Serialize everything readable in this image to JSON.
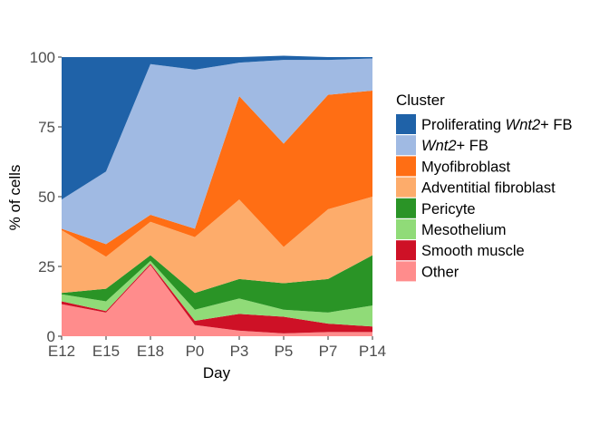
{
  "chart_data": {
    "type": "area",
    "stacked": true,
    "xlabel": "Day",
    "ylabel": "% of cells",
    "ylim": [
      0,
      100
    ],
    "yticks": [
      {
        "value": 0,
        "label": "0"
      },
      {
        "value": 25,
        "label": "25"
      },
      {
        "value": 50,
        "label": "50"
      },
      {
        "value": 75,
        "label": "75"
      },
      {
        "value": 100,
        "label": "100"
      }
    ],
    "categories": [
      "E12",
      "E15",
      "E18",
      "P0",
      "P3",
      "P5",
      "P7",
      "P14"
    ],
    "legend": {
      "title": "Cluster",
      "position": "right"
    },
    "grid": false,
    "series": [
      {
        "name": "Other",
        "label_parts": [
          {
            "text": "Other",
            "italic": false
          }
        ],
        "color": "#FF8C8C",
        "values": [
          11.5,
          8.5,
          25.5,
          4,
          2,
          1,
          1.5,
          1.5
        ]
      },
      {
        "name": "Smooth muscle",
        "label_parts": [
          {
            "text": "Smooth muscle",
            "italic": false
          }
        ],
        "color": "#CE1126",
        "values": [
          1,
          0.5,
          0.5,
          1.5,
          6,
          6,
          3,
          2
        ]
      },
      {
        "name": "Mesothelium",
        "label_parts": [
          {
            "text": "Mesothelium",
            "italic": false
          }
        ],
        "color": "#90DB78",
        "values": [
          2.5,
          3.5,
          1,
          4,
          5.5,
          2.5,
          4,
          7.5
        ]
      },
      {
        "name": "Pericyte",
        "label_parts": [
          {
            "text": "Pericyte",
            "italic": false
          }
        ],
        "color": "#2A9426",
        "values": [
          0.5,
          4.5,
          2,
          6,
          7,
          9.5,
          12,
          18
        ]
      },
      {
        "name": "Adventitial fibroblast",
        "label_parts": [
          {
            "text": "Adventitial fibroblast",
            "italic": false
          }
        ],
        "color": "#FDAC6B",
        "values": [
          22.5,
          11.5,
          12,
          20,
          28.5,
          13,
          25,
          21
        ]
      },
      {
        "name": "Myofibroblast",
        "label_parts": [
          {
            "text": "Myofibroblast",
            "italic": false
          }
        ],
        "color": "#FF6E14",
        "values": [
          0.5,
          4.5,
          2.5,
          3,
          37,
          37,
          41,
          38
        ]
      },
      {
        "name": "Wnt2+ FB",
        "label_parts": [
          {
            "text": "Wnt2",
            "italic": true
          },
          {
            "text": "+ FB",
            "italic": false
          }
        ],
        "color": "#A0BAE3",
        "values": [
          10.5,
          26,
          54,
          57,
          12,
          30,
          12.5,
          11.5
        ]
      },
      {
        "name": "Proliferating Wnt2+ FB",
        "label_parts": [
          {
            "text": "Proliferating ",
            "italic": false
          },
          {
            "text": "Wnt2",
            "italic": true
          },
          {
            "text": "+ FB",
            "italic": false
          }
        ],
        "color": "#1F62A8",
        "values": [
          51,
          41,
          2.5,
          4.5,
          2,
          1.5,
          1,
          0.5
        ]
      }
    ]
  }
}
